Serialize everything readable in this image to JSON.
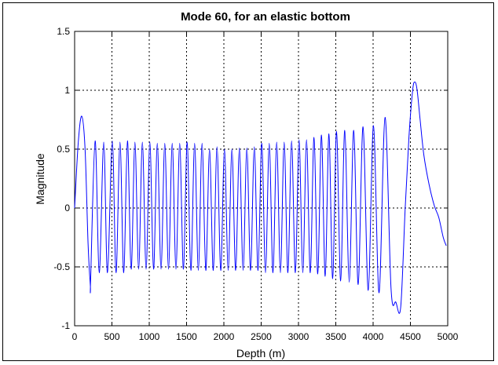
{
  "chart_data": {
    "type": "line",
    "title": "Mode 60, for an elastic bottom",
    "xlabel": "Depth (m)",
    "ylabel": "Magnitude",
    "xlim": [
      0,
      5000
    ],
    "ylim": [
      -1,
      1.5
    ],
    "xticks": [
      0,
      500,
      1000,
      1500,
      2000,
      2500,
      3000,
      3500,
      4000,
      4500,
      5000
    ],
    "yticks": [
      -1,
      -0.5,
      0,
      0.5,
      1,
      1.5
    ],
    "xtick_labels": [
      "0",
      "500",
      "1000",
      "1500",
      "2000",
      "2500",
      "3000",
      "3500",
      "4000",
      "4500",
      "5000"
    ],
    "ytick_labels": [
      "-1",
      "-0.5",
      "0",
      "0.5",
      "1",
      "1.5"
    ],
    "grid": true,
    "grid_style": "dotted",
    "line_color": "#0000ff",
    "series": [
      {
        "x": [
          0,
          48,
          95,
          140,
          180,
          210,
          215,
          275,
          330,
          390,
          440,
          505,
          555,
          608,
          658,
          708,
          758,
          808,
          858,
          908,
          958,
          1008,
          1058,
          1108,
          1158,
          1208,
          1258,
          1308,
          1358,
          1408,
          1458,
          1508,
          1558,
          1608,
          1658,
          1708,
          1758,
          1808,
          1858,
          1908,
          1958,
          2008,
          2058,
          2108,
          2158,
          2208,
          2258,
          2308,
          2358,
          2408,
          2458,
          2508,
          2558,
          2608,
          2658,
          2708,
          2758,
          2808,
          2858,
          2908,
          2958,
          3008,
          3058,
          3108,
          3158,
          3208,
          3258,
          3308,
          3358,
          3408,
          3458,
          3510,
          3565,
          3620,
          3680,
          3740,
          3800,
          3865,
          3935,
          4005,
          4080,
          4160,
          4240,
          4305,
          4370,
          4430,
          4480,
          4530,
          4560,
          4590,
          4630,
          4680,
          4750,
          4820,
          4880,
          4940,
          4980
        ],
        "y": [
          0,
          0.55,
          0.78,
          0.5,
          -0.3,
          -0.65,
          -0.6,
          0.57,
          -0.55,
          0.56,
          -0.55,
          0.57,
          -0.55,
          0.56,
          -0.55,
          0.57,
          -0.52,
          0.56,
          -0.52,
          0.56,
          -0.52,
          0.56,
          -0.52,
          0.55,
          -0.52,
          0.55,
          -0.52,
          0.55,
          -0.52,
          0.55,
          -0.52,
          0.56,
          -0.53,
          0.55,
          -0.53,
          0.55,
          -0.53,
          0.5,
          -0.53,
          0.52,
          -0.53,
          0.5,
          -0.53,
          0.5,
          -0.53,
          0.51,
          -0.53,
          0.51,
          -0.53,
          0.52,
          -0.53,
          0.55,
          -0.55,
          0.55,
          -0.55,
          0.56,
          -0.55,
          0.56,
          -0.55,
          0.57,
          -0.55,
          0.58,
          -0.55,
          0.58,
          -0.55,
          0.6,
          -0.56,
          0.62,
          -0.58,
          0.63,
          -0.6,
          0.65,
          -0.62,
          0.66,
          -0.63,
          0.66,
          -0.65,
          0.69,
          -0.7,
          0.7,
          -0.72,
          0.77,
          -0.68,
          -0.8,
          -0.84,
          0.0,
          0.6,
          1.0,
          1.07,
          1.0,
          0.75,
          0.45,
          0.2,
          0.02,
          -0.08,
          -0.25,
          -0.32
        ]
      }
    ]
  }
}
